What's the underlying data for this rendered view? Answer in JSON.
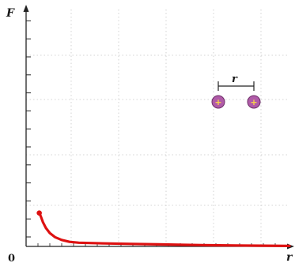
{
  "chart_data": {
    "type": "line",
    "title": "",
    "xlabel": "r",
    "ylabel": "F",
    "origin_label": "0",
    "xlim": [
      0,
      1
    ],
    "ylim": [
      0,
      1
    ],
    "grid": true,
    "series": [
      {
        "color": "#dd1111",
        "x": [
          0.05,
          0.056,
          0.064,
          0.075,
          0.09,
          0.11,
          0.135,
          0.165,
          0.2,
          0.3,
          0.4,
          0.5,
          0.6,
          0.7,
          0.8,
          0.9,
          1.0
        ],
        "y": [
          0.145,
          0.13,
          0.105,
          0.08,
          0.058,
          0.04,
          0.028,
          0.02,
          0.016,
          0.013,
          0.011,
          0.009,
          0.007,
          0.005,
          0.004,
          0.003,
          0.002
        ]
      }
    ]
  },
  "inset": {
    "distance_label": "r",
    "charge_symbol": "+",
    "charge_color": "#b05ba8"
  },
  "colors": {
    "axis": "#222222",
    "grid": "#c8c8c8"
  }
}
